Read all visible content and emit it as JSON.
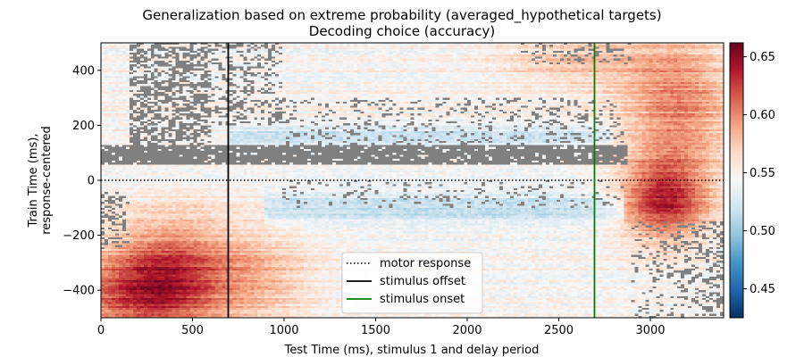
{
  "chart_data": {
    "type": "heatmap",
    "title": "Generalization based on extreme probability (averaged_hypothetical targets)",
    "subtitle": "Decoding choice (accuracy)",
    "xlabel": "Test Time (ms), stimulus 1 and delay period",
    "ylabel_line1": "Train Time (ms),",
    "ylabel_line2": "response-centered",
    "xlim": [
      0,
      3400
    ],
    "ylim": [
      -500,
      500
    ],
    "xticks": [
      0,
      500,
      1000,
      1500,
      2000,
      2500,
      3000
    ],
    "yticks": [
      -400,
      -200,
      0,
      200,
      400
    ],
    "colorbar": {
      "vmin": 0.425,
      "vmax": 0.662,
      "ticks": [
        0.45,
        0.5,
        0.55,
        0.6,
        0.65
      ],
      "tick_labels": [
        "0.45",
        "0.50",
        "0.55",
        "0.60",
        "0.65"
      ],
      "colormap": "RdBu_r"
    },
    "masked_color": "#808080",
    "reference_lines": [
      {
        "orientation": "horizontal",
        "value": 0,
        "style": "dotted",
        "color": "#000000",
        "label": "motor response"
      },
      {
        "orientation": "vertical",
        "value": 695,
        "style": "solid",
        "color": "#000000",
        "label": "stimulus offset"
      },
      {
        "orientation": "vertical",
        "value": 2695,
        "style": "solid",
        "color": "#008000",
        "label": "stimulus onset"
      }
    ],
    "legend": {
      "placement": "bottom-center",
      "entries": [
        "motor response",
        "stimulus offset",
        "stimulus onset"
      ]
    },
    "regions": [
      {
        "name": "early-test-late-train-high",
        "x": [
          0,
          700
        ],
        "y": [
          -500,
          -150
        ],
        "approx_value": 0.62
      },
      {
        "name": "late-test-late-train-high",
        "x": [
          2900,
          3400
        ],
        "y": [
          -250,
          50
        ],
        "approx_value": 0.63
      },
      {
        "name": "late-test-early-train-moderate",
        "x": [
          2900,
          3400
        ],
        "y": [
          100,
          500
        ],
        "approx_value": 0.59
      },
      {
        "name": "mid-test-band-near-response",
        "x": [
          700,
          2900
        ],
        "y": [
          -150,
          0
        ],
        "approx_value": 0.53
      },
      {
        "name": "masked-nonsignificant-band",
        "x": [
          0,
          2850
        ],
        "y": [
          50,
          130
        ],
        "approx_value": null
      }
    ]
  }
}
